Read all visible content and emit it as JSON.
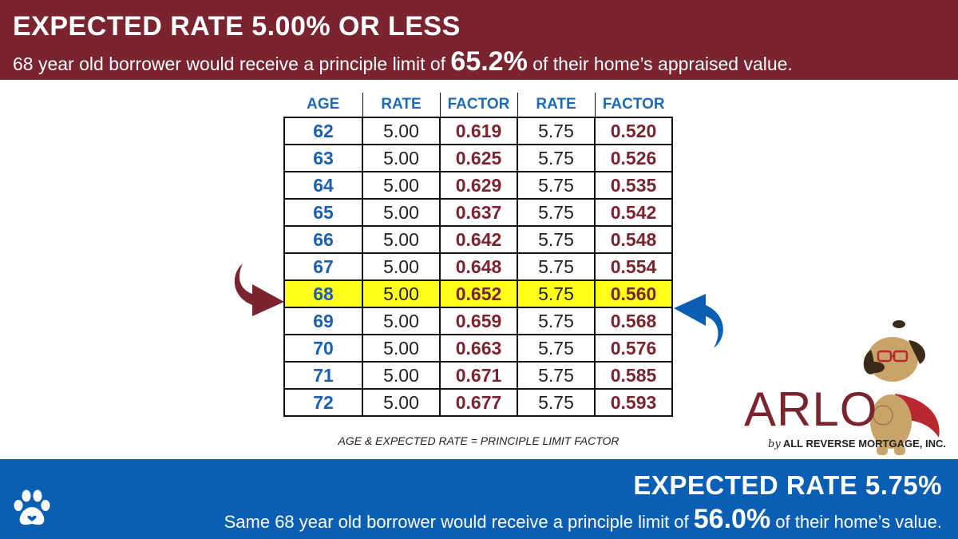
{
  "header": {
    "title": "EXPECTED RATE 5.00% OR LESS",
    "subtitle_pre": "68 year old borrower would receive a principle limit of ",
    "subtitle_highlight": "65.2%",
    "subtitle_post": " of their home’s appraised value."
  },
  "table": {
    "columns": [
      "AGE",
      "RATE",
      "FACTOR",
      "RATE",
      "FACTOR"
    ],
    "highlight_age": "68",
    "rows": [
      {
        "age": "62",
        "rate1": "5.00",
        "factor1": "0.619",
        "rate2": "5.75",
        "factor2": "0.520"
      },
      {
        "age": "63",
        "rate1": "5.00",
        "factor1": "0.625",
        "rate2": "5.75",
        "factor2": "0.526"
      },
      {
        "age": "64",
        "rate1": "5.00",
        "factor1": "0.629",
        "rate2": "5.75",
        "factor2": "0.535"
      },
      {
        "age": "65",
        "rate1": "5.00",
        "factor1": "0.637",
        "rate2": "5.75",
        "factor2": "0.542"
      },
      {
        "age": "66",
        "rate1": "5.00",
        "factor1": "0.642",
        "rate2": "5.75",
        "factor2": "0.548"
      },
      {
        "age": "67",
        "rate1": "5.00",
        "factor1": "0.648",
        "rate2": "5.75",
        "factor2": "0.554"
      },
      {
        "age": "68",
        "rate1": "5.00",
        "factor1": "0.652",
        "rate2": "5.75",
        "factor2": "0.560"
      },
      {
        "age": "69",
        "rate1": "5.00",
        "factor1": "0.659",
        "rate2": "5.75",
        "factor2": "0.568"
      },
      {
        "age": "70",
        "rate1": "5.00",
        "factor1": "0.663",
        "rate2": "5.75",
        "factor2": "0.576"
      },
      {
        "age": "71",
        "rate1": "5.00",
        "factor1": "0.671",
        "rate2": "5.75",
        "factor2": "0.585"
      },
      {
        "age": "72",
        "rate1": "5.00",
        "factor1": "0.677",
        "rate2": "5.75",
        "factor2": "0.593"
      }
    ],
    "caption": "AGE & EXPECTED RATE = PRINCIPLE LIMIT FACTOR"
  },
  "logo": {
    "word": "ARLO",
    "by_prefix": "by",
    "company": "ALL REVERSE MORTGAGE, INC."
  },
  "footer": {
    "title": "EXPECTED RATE 5.75%",
    "subtitle_pre": "Same 68 year old borrower would receive a principle limit of ",
    "subtitle_highlight": "56.0%",
    "subtitle_post": " of their home’s value.",
    "icon": "paw-icon"
  },
  "colors": {
    "top_banner": "#7a2430",
    "bottom_banner": "#0a5fb4",
    "age_blue": "#1a5fb0",
    "factor_maroon": "#7a2430",
    "highlight_yellow": "#ffff1a"
  }
}
